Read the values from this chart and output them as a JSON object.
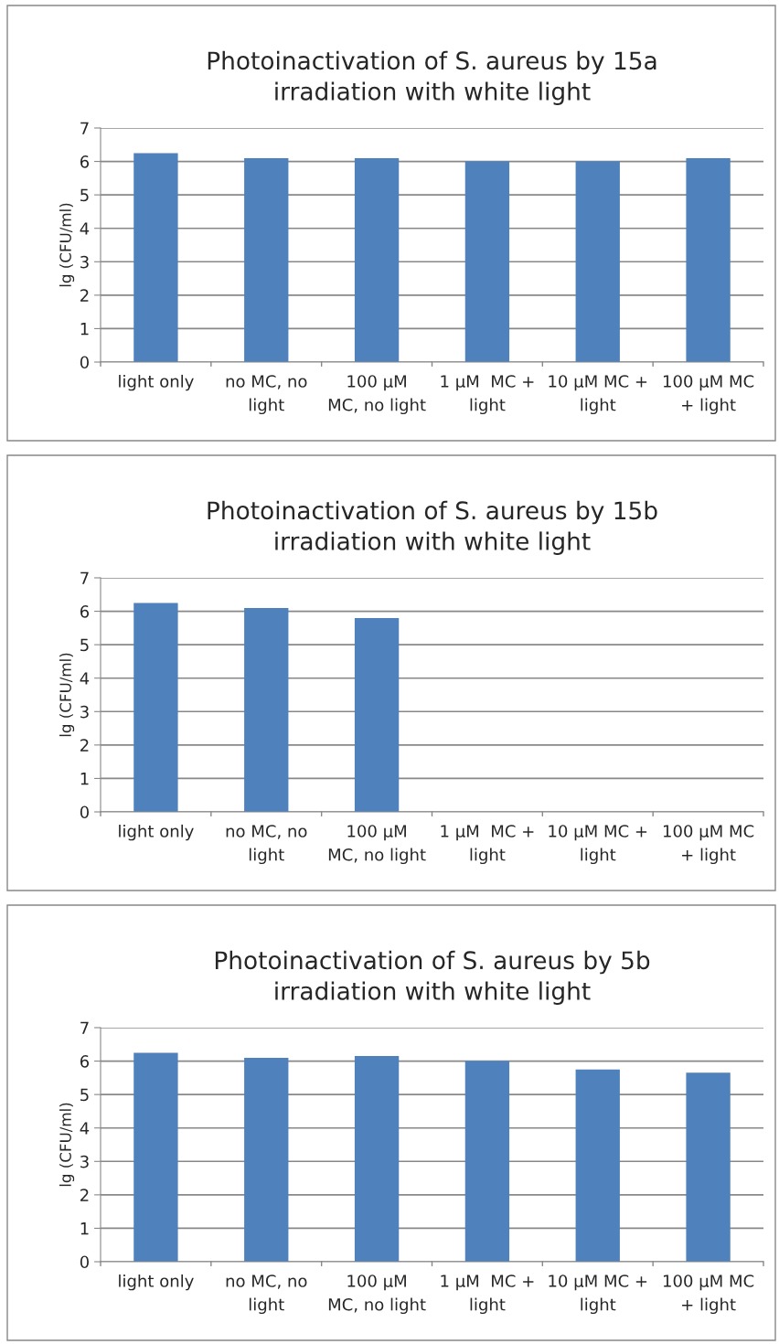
{
  "chart_data": [
    {
      "type": "bar",
      "title": "Photoinactivation of S. aureus by 15a\nirradiation with white light",
      "ylabel": "lg (CFU/ml)",
      "categories": [
        "light only",
        "no MC, no\nlight",
        "100 µM\nMC, no light",
        "1 µM  MC +\nlight",
        "10 µM MC +\nlight",
        "100 µM MC\n+ light"
      ],
      "values": [
        6.25,
        6.1,
        6.1,
        6.0,
        6.0,
        6.1
      ],
      "color": "#4f81bd",
      "ylim": [
        0,
        7
      ],
      "yticks": [
        0,
        1,
        2,
        3,
        4,
        5,
        6,
        7
      ],
      "grid": "y"
    },
    {
      "type": "bar",
      "title": "Photoinactivation of S. aureus by 15b\nirradiation with white light",
      "ylabel": "lg (CFU/ml)",
      "categories": [
        "light only",
        "no MC, no\nlight",
        "100 µM\nMC, no light",
        "1 µM  MC +\nlight",
        "10 µM MC +\nlight",
        "100 µM MC\n+ light"
      ],
      "values": [
        6.25,
        6.1,
        5.8,
        null,
        null,
        null
      ],
      "color": "#4f81bd",
      "ylim": [
        0,
        7
      ],
      "yticks": [
        0,
        1,
        2,
        3,
        4,
        5,
        6,
        7
      ],
      "grid": "y"
    },
    {
      "type": "bar",
      "title": "Photoinactivation of S. aureus by 5b\nirradiation with white light",
      "ylabel": "lg (CFU/ml)",
      "categories": [
        "light only",
        "no MC, no\nlight",
        "100 µM\nMC, no light",
        "1 µM  MC +\nlight",
        "10 µM MC +\nlight",
        "100 µM MC\n+ light"
      ],
      "values": [
        6.25,
        6.1,
        6.15,
        6.0,
        5.75,
        5.65
      ],
      "color": "#4f81bd",
      "ylim": [
        0,
        7
      ],
      "yticks": [
        0,
        1,
        2,
        3,
        4,
        5,
        6,
        7
      ],
      "grid": "y"
    }
  ]
}
